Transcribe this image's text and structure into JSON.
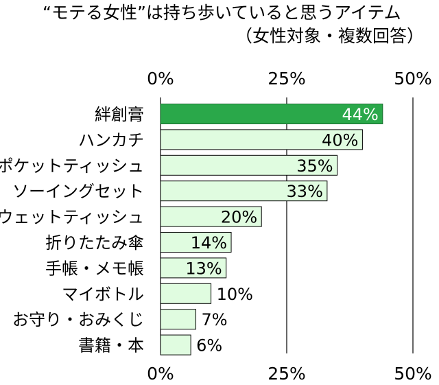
{
  "title": "“モテる女性”は持ち歩いていると思うアイテム",
  "subtitle": "（女性対象・複数回答）",
  "colors": {
    "highlight_fill": "#2aa84a",
    "highlight_stroke": "#1a6b2e",
    "bar_fill": "#e0fce0",
    "bar_stroke": "#000000",
    "grid": "#000000",
    "highlight_label": "#ffffff",
    "label": "#000000"
  },
  "chart_data": {
    "type": "bar",
    "orientation": "horizontal",
    "categories": [
      "絆創膏",
      "ハンカチ",
      "ポケットティッシュ",
      "ソーイングセット",
      "ウェットティッシュ",
      "折りたたみ傘",
      "手帳・メモ帳",
      "マイボトル",
      "お守り・おみくじ",
      "書籍・本"
    ],
    "values": [
      44,
      40,
      35,
      33,
      20,
      14,
      13,
      10,
      7,
      6
    ],
    "value_labels": [
      "44%",
      "40%",
      "35%",
      "33%",
      "20%",
      "14%",
      "13%",
      "10%",
      "7%",
      "6%"
    ],
    "highlight_index": 0,
    "xlim": [
      0,
      50
    ],
    "ticks": [
      0,
      25,
      50
    ],
    "tick_labels": [
      "0%",
      "25%",
      "50%"
    ],
    "tick_labels_position": "top and bottom",
    "grid": true,
    "legend": "none"
  }
}
